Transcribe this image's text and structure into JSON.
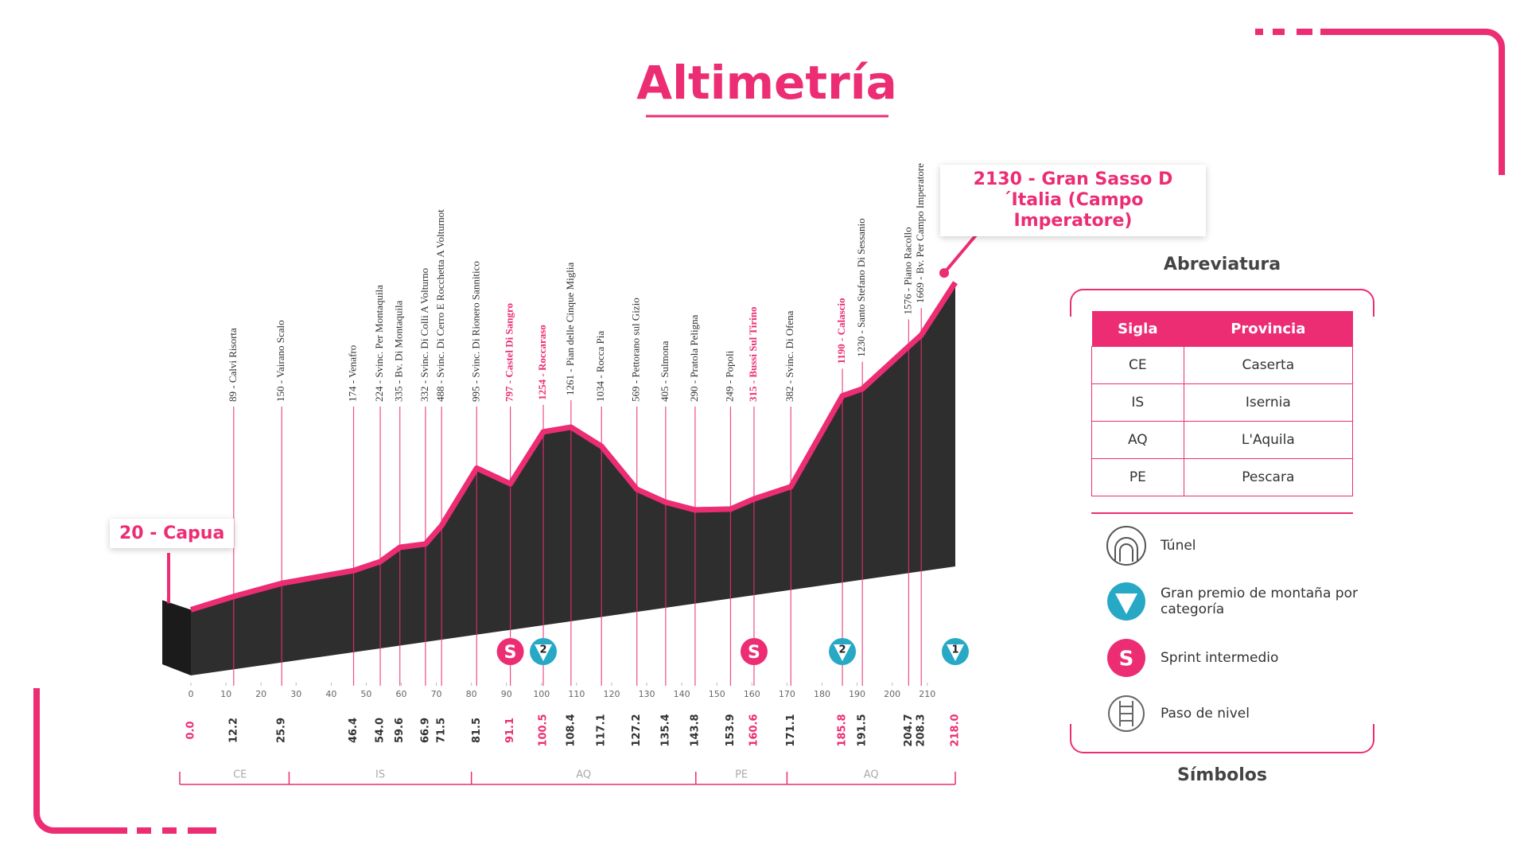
{
  "chart_data": {
    "type": "profile",
    "title": "Altimetría",
    "x": [
      0.0,
      12.2,
      25.9,
      46.4,
      54.0,
      59.6,
      66.9,
      71.5,
      81.5,
      91.1,
      100.5,
      108.4,
      117.1,
      127.2,
      135.4,
      143.8,
      153.9,
      160.6,
      171.1,
      185.8,
      191.5,
      204.7,
      208.3,
      218.0
    ],
    "x_labels": [
      "0.0",
      "12.2",
      "25.9",
      "46.4",
      "54.0",
      "59.6",
      "66.9",
      "71.5",
      "81.5",
      "91.1",
      "100.5",
      "108.4",
      "117.1",
      "127.2",
      "135.4",
      "143.8",
      "153.9",
      "160.6",
      "171.1",
      "185.8",
      "191.5",
      "204.7",
      "208.3",
      "218.0"
    ],
    "values": [
      20,
      89,
      150,
      174,
      224,
      335,
      332,
      488,
      995,
      797,
      1254,
      1261,
      1034,
      569,
      405,
      290,
      249,
      315,
      382,
      1190,
      1230,
      1576,
      1669,
      2130
    ],
    "labels": [
      "20 - Capua",
      "89 - Calvi Risorta",
      "150 - Vairano Scalo",
      "174 - Venafro",
      "224 - Svinc. Per Montaquila",
      "335 - Bv. Di Montaquila",
      "332 - Svinc. Di Colli A Volturno",
      "488 - Svinc. Di Cerro E Rocchetta A Volturnot",
      "995 - Svinc. Di Rionero Sannitico",
      "797 - Castel Di Sangro",
      "1254 - Roccaraso",
      "1261 - Pian delle Cinque Miglia",
      "1034 - Rocca Pia",
      "569 - Pettorano sul Gizio",
      "405 - Sulmona",
      "290 - Pratola Peligna",
      "249 - Popoli",
      "315 - Bussi Sul Tirino",
      "382 - Svinc. Di Ofena",
      "1190 - Calascio",
      "1230 - Santo Stefano Di Sessanio",
      "1576 - Piano Racollo",
      "1669 - Bv. Per Campo Imperatore",
      "2130 - Gran Sasso D´Italia (Campo Imperatore)"
    ],
    "label_colors": [
      "#ec2d74",
      "#333333",
      "#333333",
      "#333333",
      "#333333",
      "#333333",
      "#333333",
      "#333333",
      "#333333",
      "#ec2d74",
      "#ec2d74",
      "#333333",
      "#333333",
      "#333333",
      "#333333",
      "#333333",
      "#333333",
      "#ec2d74",
      "#333333",
      "#ec2d74",
      "#333333",
      "#333333",
      "#333333",
      "#ec2d74"
    ],
    "symbols": [
      null,
      null,
      null,
      null,
      null,
      null,
      null,
      null,
      null,
      "S",
      "2",
      null,
      null,
      null,
      null,
      null,
      null,
      "S",
      null,
      "2",
      null,
      null,
      null,
      "1"
    ],
    "xlim": [
      0,
      218
    ],
    "xticks": [
      0,
      10,
      20,
      30,
      40,
      50,
      60,
      70,
      80,
      90,
      100,
      110,
      120,
      130,
      140,
      150,
      160,
      170,
      180,
      190,
      200,
      210
    ],
    "color": "#ec2d74",
    "province_breaks": [
      0,
      28,
      80,
      144,
      170,
      218
    ],
    "provinces": [
      "CE",
      "IS",
      "AQ",
      "PE",
      "AQ"
    ]
  },
  "abbreviations": {
    "title": "Abreviatura",
    "header": [
      "Sigla",
      "Provincia"
    ],
    "rows": [
      [
        "CE",
        "Caserta"
      ],
      [
        "IS",
        "Isernia"
      ],
      [
        "AQ",
        "L'Aquila"
      ],
      [
        "PE",
        "Pescara"
      ]
    ]
  },
  "symbols_legend": {
    "title": "Símbolos",
    "items": [
      "Túnel",
      "Gran premio de montaña por categoría",
      "Sprint intermedio",
      "Paso de nivel"
    ]
  }
}
